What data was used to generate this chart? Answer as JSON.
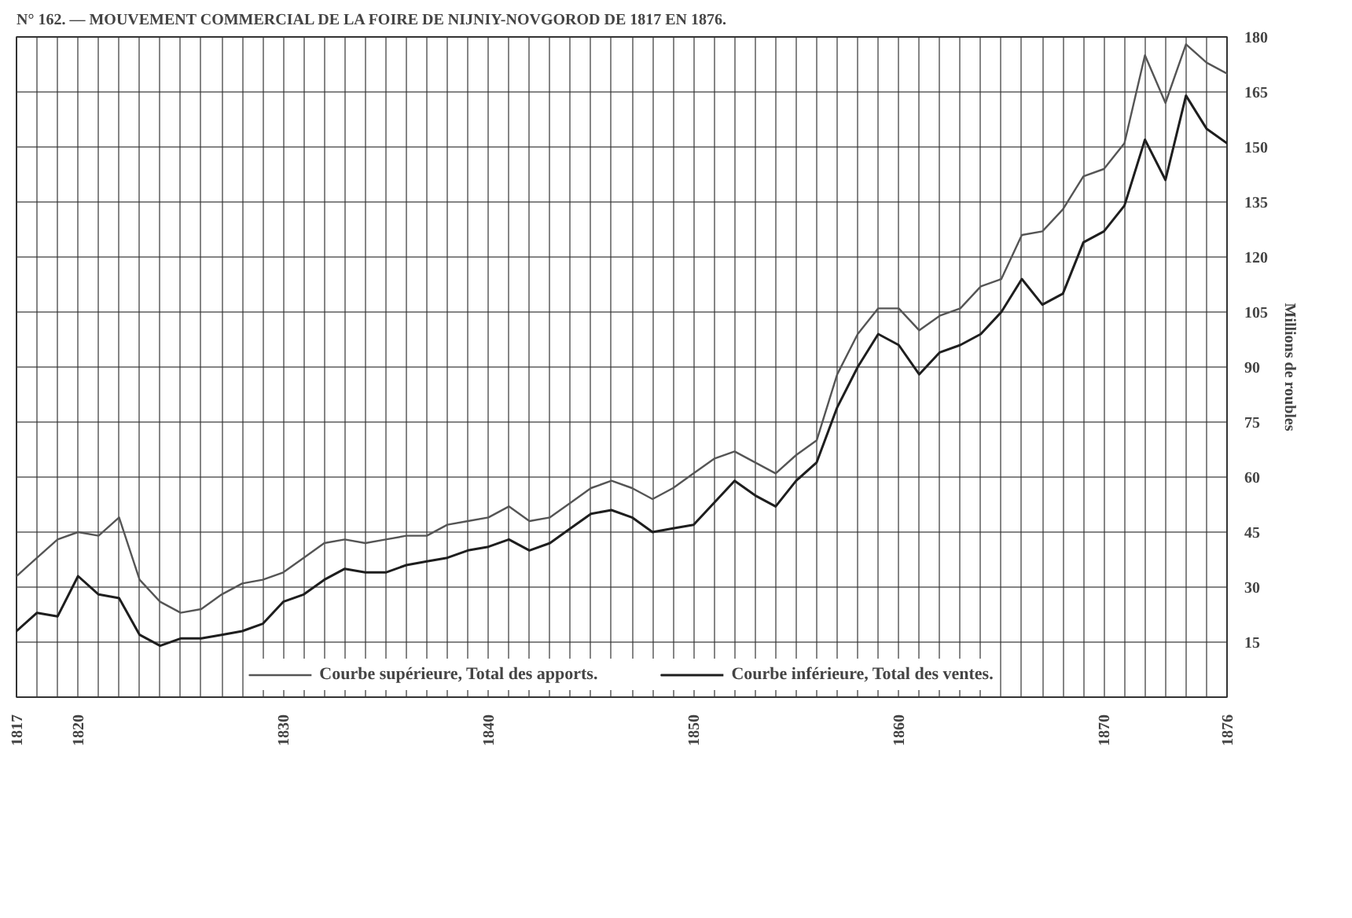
{
  "chart_data": {
    "type": "line",
    "title": "N° 162. — MOUVEMENT COMMERCIAL DE LA FOIRE DE NIJNIY-NOVGOROD DE 1817 EN 1876.",
    "ylabel": "Millions de roubles",
    "x": [
      1817,
      1818,
      1819,
      1820,
      1821,
      1822,
      1823,
      1824,
      1825,
      1826,
      1827,
      1828,
      1829,
      1830,
      1831,
      1832,
      1833,
      1834,
      1835,
      1836,
      1837,
      1838,
      1839,
      1840,
      1841,
      1842,
      1843,
      1844,
      1845,
      1846,
      1847,
      1848,
      1849,
      1850,
      1851,
      1852,
      1853,
      1854,
      1855,
      1856,
      1857,
      1858,
      1859,
      1860,
      1861,
      1862,
      1863,
      1864,
      1865,
      1866,
      1867,
      1868,
      1869,
      1870,
      1871,
      1872,
      1873,
      1874,
      1875,
      1876
    ],
    "series": [
      {
        "name": "Courbe supérieure, Total des apports.",
        "color": "#555555",
        "values": [
          33,
          38,
          43,
          45,
          44,
          49,
          32,
          26,
          23,
          24,
          28,
          31,
          32,
          34,
          38,
          42,
          43,
          42,
          43,
          44,
          44,
          47,
          48,
          49,
          52,
          48,
          49,
          53,
          57,
          59,
          57,
          54,
          57,
          61,
          65,
          67,
          64,
          61,
          66,
          70,
          88,
          99,
          106,
          106,
          100,
          104,
          106,
          112,
          114,
          126,
          127,
          133,
          142,
          144,
          151,
          175,
          162,
          178,
          173,
          170
        ]
      },
      {
        "name": "Courbe inférieure, Total des ventes.",
        "color": "#1e1e1e",
        "values": [
          18,
          23,
          22,
          33,
          28,
          27,
          17,
          14,
          16,
          16,
          17,
          18,
          20,
          26,
          28,
          32,
          35,
          34,
          34,
          36,
          37,
          38,
          40,
          41,
          43,
          40,
          42,
          46,
          50,
          51,
          49,
          45,
          46,
          47,
          53,
          59,
          55,
          52,
          59,
          64,
          79,
          90,
          99,
          96,
          88,
          94,
          96,
          99,
          105,
          114,
          107,
          110,
          124,
          127,
          134,
          152,
          141,
          164,
          155,
          151
        ]
      }
    ],
    "xlim": [
      1817,
      1876
    ],
    "ylim": [
      0,
      180
    ],
    "xticks": [
      1817,
      {
        "value": 1818,
        "label": null
      },
      {
        "value": 1819,
        "label": null
      },
      1820,
      {
        "value": 1821,
        "label": null
      },
      {
        "value": 1822,
        "label": null
      },
      {
        "value": 1823,
        "label": null
      },
      {
        "value": 1824,
        "label": null
      },
      {
        "value": 1825,
        "label": null
      },
      {
        "value": 1826,
        "label": null
      },
      {
        "value": 1827,
        "label": null
      },
      {
        "value": 1828,
        "label": null
      },
      {
        "value": 1829,
        "label": null
      },
      1830,
      {
        "value": 1831,
        "label": null
      },
      {
        "value": 1832,
        "label": null
      },
      {
        "value": 1833,
        "label": null
      },
      {
        "value": 1834,
        "label": null
      },
      {
        "value": 1835,
        "label": null
      },
      {
        "value": 1836,
        "label": null
      },
      {
        "value": 1837,
        "label": null
      },
      {
        "value": 1838,
        "label": null
      },
      {
        "value": 1839,
        "label": null
      },
      1840,
      {
        "value": 1841,
        "label": null
      },
      {
        "value": 1842,
        "label": null
      },
      {
        "value": 1843,
        "label": null
      },
      {
        "value": 1844,
        "label": null
      },
      {
        "value": 1845,
        "label": null
      },
      {
        "value": 1846,
        "label": null
      },
      {
        "value": 1847,
        "label": null
      },
      {
        "value": 1848,
        "label": null
      },
      {
        "value": 1849,
        "label": null
      },
      1850,
      {
        "value": 1851,
        "label": null
      },
      {
        "value": 1852,
        "label": null
      },
      {
        "value": 1853,
        "label": null
      },
      {
        "value": 1854,
        "label": null
      },
      {
        "value": 1855,
        "label": null
      },
      {
        "value": 1856,
        "label": null
      },
      {
        "value": 1857,
        "label": null
      },
      {
        "value": 1858,
        "label": null
      },
      {
        "value": 1859,
        "label": null
      },
      1860,
      {
        "value": 1861,
        "label": null
      },
      {
        "value": 1862,
        "label": null
      },
      {
        "value": 1863,
        "label": null
      },
      {
        "value": 1864,
        "label": null
      },
      {
        "value": 1865,
        "label": null
      },
      {
        "value": 1866,
        "label": null
      },
      {
        "value": 1867,
        "label": null
      },
      {
        "value": 1868,
        "label": null
      },
      {
        "value": 1869,
        "label": null
      },
      1870,
      {
        "value": 1871,
        "label": null
      },
      {
        "value": 1872,
        "label": null
      },
      {
        "value": 1873,
        "label": null
      },
      {
        "value": 1874,
        "label": null
      },
      {
        "value": 1875,
        "label": null
      },
      1876
    ],
    "yticks": [
      15,
      30,
      45,
      60,
      75,
      90,
      105,
      120,
      135,
      150,
      165,
      180
    ],
    "grid": true,
    "legend": "bottom",
    "marker": "none",
    "line_style": "solid"
  }
}
